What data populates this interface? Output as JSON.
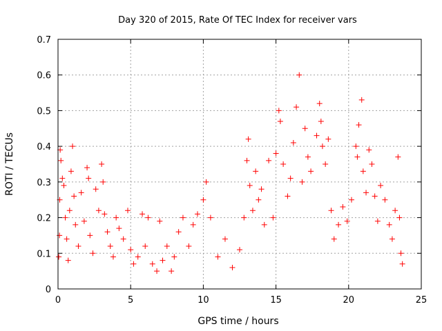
{
  "chart_data": {
    "type": "scatter",
    "title": "Day 320 of 2015, Rate Of TEC Index for receiver vars",
    "xlabel": "GPS time / hours",
    "ylabel": "ROTI / TECUs",
    "xlim": [
      0,
      25
    ],
    "ylim": [
      0,
      0.7
    ],
    "xticks": [
      "0",
      "5",
      "10",
      "15",
      "20",
      "25"
    ],
    "yticks": [
      "0",
      "0.1",
      "0.2",
      "0.3",
      "0.4",
      "0.5",
      "0.6",
      "0.7"
    ],
    "grid": true,
    "marker": "+",
    "color": "#ff0000",
    "series": [
      {
        "points": [
          [
            0.05,
            0.09
          ],
          [
            0.1,
            0.15
          ],
          [
            0.12,
            0.25
          ],
          [
            0.15,
            0.39
          ],
          [
            0.2,
            0.36
          ],
          [
            0.3,
            0.31
          ],
          [
            0.4,
            0.29
          ],
          [
            0.5,
            0.2
          ],
          [
            0.6,
            0.14
          ],
          [
            0.7,
            0.08
          ],
          [
            0.8,
            0.22
          ],
          [
            0.9,
            0.33
          ],
          [
            1.0,
            0.4
          ],
          [
            1.1,
            0.26
          ],
          [
            1.2,
            0.18
          ],
          [
            1.4,
            0.12
          ],
          [
            1.6,
            0.27
          ],
          [
            1.8,
            0.19
          ],
          [
            2.0,
            0.34
          ],
          [
            2.1,
            0.31
          ],
          [
            2.2,
            0.15
          ],
          [
            2.4,
            0.1
          ],
          [
            2.6,
            0.28
          ],
          [
            2.8,
            0.22
          ],
          [
            3.0,
            0.35
          ],
          [
            3.1,
            0.3
          ],
          [
            3.2,
            0.21
          ],
          [
            3.4,
            0.16
          ],
          [
            3.6,
            0.12
          ],
          [
            3.8,
            0.09
          ],
          [
            4.0,
            0.2
          ],
          [
            4.2,
            0.17
          ],
          [
            4.5,
            0.14
          ],
          [
            4.8,
            0.22
          ],
          [
            5.0,
            0.11
          ],
          [
            5.2,
            0.07
          ],
          [
            5.5,
            0.09
          ],
          [
            5.8,
            0.21
          ],
          [
            6.0,
            0.12
          ],
          [
            6.2,
            0.2
          ],
          [
            6.5,
            0.07
          ],
          [
            6.8,
            0.05
          ],
          [
            7.0,
            0.19
          ],
          [
            7.2,
            0.08
          ],
          [
            7.5,
            0.12
          ],
          [
            7.8,
            0.05
          ],
          [
            8.0,
            0.09
          ],
          [
            8.3,
            0.16
          ],
          [
            8.6,
            0.2
          ],
          [
            9.0,
            0.12
          ],
          [
            9.3,
            0.18
          ],
          [
            9.6,
            0.21
          ],
          [
            10.0,
            0.25
          ],
          [
            10.2,
            0.3
          ],
          [
            10.5,
            0.2
          ],
          [
            11.0,
            0.09
          ],
          [
            11.5,
            0.14
          ],
          [
            12.0,
            0.06
          ],
          [
            12.5,
            0.11
          ],
          [
            12.8,
            0.2
          ],
          [
            13.0,
            0.36
          ],
          [
            13.1,
            0.42
          ],
          [
            13.2,
            0.29
          ],
          [
            13.4,
            0.22
          ],
          [
            13.6,
            0.33
          ],
          [
            13.8,
            0.25
          ],
          [
            14.0,
            0.28
          ],
          [
            14.2,
            0.18
          ],
          [
            14.5,
            0.36
          ],
          [
            14.8,
            0.2
          ],
          [
            15.0,
            0.38
          ],
          [
            15.2,
            0.5
          ],
          [
            15.3,
            0.47
          ],
          [
            15.5,
            0.35
          ],
          [
            15.8,
            0.26
          ],
          [
            16.0,
            0.31
          ],
          [
            16.2,
            0.41
          ],
          [
            16.4,
            0.51
          ],
          [
            16.6,
            0.6
          ],
          [
            16.8,
            0.3
          ],
          [
            17.0,
            0.45
          ],
          [
            17.2,
            0.37
          ],
          [
            17.4,
            0.33
          ],
          [
            17.8,
            0.43
          ],
          [
            18.0,
            0.52
          ],
          [
            18.1,
            0.47
          ],
          [
            18.2,
            0.4
          ],
          [
            18.4,
            0.35
          ],
          [
            18.6,
            0.42
          ],
          [
            18.8,
            0.22
          ],
          [
            19.0,
            0.14
          ],
          [
            19.3,
            0.18
          ],
          [
            19.6,
            0.23
          ],
          [
            19.9,
            0.19
          ],
          [
            20.2,
            0.25
          ],
          [
            20.5,
            0.4
          ],
          [
            20.6,
            0.37
          ],
          [
            20.7,
            0.46
          ],
          [
            20.9,
            0.53
          ],
          [
            21.0,
            0.33
          ],
          [
            21.2,
            0.27
          ],
          [
            21.4,
            0.39
          ],
          [
            21.6,
            0.35
          ],
          [
            21.8,
            0.26
          ],
          [
            22.0,
            0.19
          ],
          [
            22.2,
            0.29
          ],
          [
            22.5,
            0.25
          ],
          [
            22.8,
            0.18
          ],
          [
            23.0,
            0.14
          ],
          [
            23.2,
            0.22
          ],
          [
            23.4,
            0.37
          ],
          [
            23.5,
            0.2
          ],
          [
            23.6,
            0.1
          ],
          [
            23.7,
            0.07
          ]
        ]
      }
    ]
  }
}
